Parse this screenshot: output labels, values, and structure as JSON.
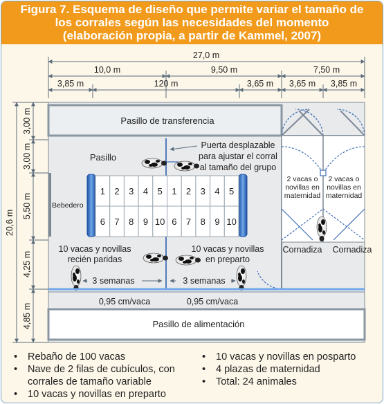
{
  "header": {
    "lines": [
      "Figura 7. Esquema de diseño que permite variar el tamaño de",
      "los corrales según las necesidades del momento",
      "(elaboración propia, a partir de Kammel, 2007)"
    ]
  },
  "dimensions": {
    "total_width": "27,0 m",
    "width_left": "10,0 m",
    "width_middle": "9,50 m",
    "width_right": "7,50 m",
    "sub_1": "3,85 m",
    "sub_2": "120 m",
    "sub_3": "3,65 m",
    "sub_4": "3,65 m",
    "sub_5": "3,85 m",
    "total_height": "20,6 m",
    "h_1": "3,00 m",
    "h_2": "3,00 m",
    "h_3": "5,50 m",
    "h_4": "4,25 m",
    "h_5": "4,85 m"
  },
  "labels": {
    "pasillo_transferencia": "Pasillo de transferencia",
    "pasillo": "Pasillo",
    "puerta_line1": "Puerta desplazable",
    "puerta_line2": "para ajustar el corral",
    "puerta_line3": "al tamaño del grupo",
    "bebedero": "Bebedero",
    "group_left_line1": "10 vacas y novillas",
    "group_left_line2": "recién paridas",
    "group_right_line1": "10 vacas y novillas",
    "group_right_line2": "en preparto",
    "weeks_left": "3 semanas",
    "weeks_right": "3 semanas",
    "trough_left": "0,95 cm/vaca",
    "trough_right": "0,95 cm/vaca",
    "pasillo_alimentacion": "Pasillo de alimentación",
    "maternity_left_line1": "2 vacas o",
    "maternity_left_line2": "novillas en",
    "maternity_left_line3": "maternidad",
    "maternity_right_line1": "2 vacas o",
    "maternity_right_line2": "novillas en",
    "maternity_right_line3": "maternidad",
    "cornadiza_left": "Cornadiza",
    "cornadiza_right": "Cornadiza"
  },
  "stalls": {
    "top_row": [
      "1",
      "2",
      "3",
      "4",
      "5",
      "1",
      "2",
      "3",
      "4",
      "5"
    ],
    "bottom_row": [
      "6",
      "7",
      "8",
      "9",
      "10",
      "6",
      "7",
      "8",
      "9",
      "10"
    ]
  },
  "bullets": {
    "left_1": "Rebaño de 100 vacas",
    "left_2a": "Nave de 2 filas de cubículos, con",
    "left_2b": "corrales de tamaño variable",
    "left_3": "10 vacas y novillas en preparto",
    "right_1": "10 vacas y novillas en posparto",
    "right_2": "4 plazas de maternidad",
    "right_3": "Total: 24 animales",
    "marker": "•"
  },
  "colors": {
    "header_bg": "#f29a1c",
    "page_bg": "#fdf7e9",
    "barn_bg": "#e8eaec",
    "wall": "#7d8995",
    "dim_line": "#5a6b7a",
    "water_blue": "#2b6fc9",
    "door_blue": "#3f6fb5"
  }
}
